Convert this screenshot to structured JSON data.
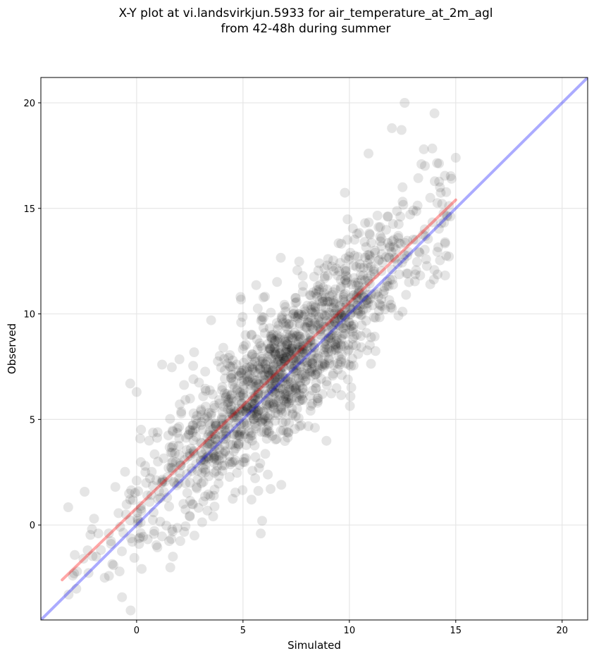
{
  "chart_data": {
    "type": "scatter",
    "title_line1": "X-Y plot at vi.landsvirkjun.5933 for air_temperature_at_2m_agl",
    "title_line2": "from 42-48h during summer",
    "xlabel": "Simulated",
    "ylabel": "Observed",
    "xlim": [
      -4.5,
      21.2
    ],
    "ylim": [
      -4.5,
      21.2
    ],
    "xticks": [
      0,
      5,
      10,
      15,
      20
    ],
    "yticks": [
      0,
      5,
      10,
      15,
      20
    ],
    "grid": true,
    "point_color": "#000000",
    "point_alpha": 0.1,
    "series": [
      {
        "kind": "reference-line",
        "color": "#0000ff",
        "x": [
          -4.5,
          21.2
        ],
        "y": [
          -4.5,
          21.2
        ]
      },
      {
        "kind": "fit-line",
        "color": "#ff0000",
        "x": [
          -3.5,
          15.0
        ],
        "y": [
          -2.6,
          15.4
        ]
      },
      {
        "kind": "points",
        "x": [
          -3.2,
          -3.0,
          -2.8,
          -2.5,
          -2.3,
          -2.1,
          -2.0,
          -1.9,
          -1.8,
          -1.5,
          -1.2,
          -1.0,
          -0.8,
          -0.5,
          -0.3,
          -0.2,
          0.0,
          0.2,
          0.4,
          0.5,
          0.8,
          1.0,
          1.2,
          1.5,
          1.8,
          2.0,
          2.2,
          2.5,
          2.8,
          3.0,
          3.2,
          3.5,
          3.8,
          4.0,
          4.2,
          4.5,
          4.8,
          5.0,
          5.2,
          5.5,
          5.8,
          6.0,
          6.2,
          6.5,
          6.8,
          7.0,
          7.2,
          7.5,
          7.8,
          8.0,
          8.2,
          8.5,
          8.8,
          9.0,
          9.2,
          9.5,
          9.8,
          10.0,
          10.2,
          10.5,
          10.8,
          11.0,
          11.2,
          11.5,
          11.8,
          12.0,
          12.3,
          12.5,
          12.8,
          13.0,
          13.3,
          13.5,
          13.8,
          14.0,
          14.5,
          14.8,
          15.0,
          1.2,
          -0.3,
          0.0,
          5.9,
          5.4,
          3.5,
          12.6,
          13.8,
          12.0,
          10.9,
          8.5,
          2.5,
          6.8
        ],
        "y": [
          -3.3,
          -2.4,
          -2.2,
          -1.6,
          -1.2,
          -0.2,
          0.3,
          -1.5,
          -0.4,
          -2.5,
          -0.9,
          1.8,
          -2.2,
          0.5,
          1.2,
          -0.8,
          2.1,
          0.9,
          2.8,
          1.4,
          0.6,
          3.0,
          2.0,
          2.7,
          3.4,
          2.2,
          1.0,
          4.5,
          2.9,
          3.9,
          3.1,
          5.2,
          2.8,
          4.7,
          6.1,
          3.8,
          5.5,
          4.2,
          6.8,
          5.0,
          7.4,
          4.4,
          6.2,
          8.1,
          5.6,
          7.0,
          9.0,
          6.5,
          8.3,
          7.7,
          10.2,
          7.2,
          9.4,
          8.8,
          10.9,
          8.0,
          11.6,
          9.6,
          12.3,
          10.4,
          9.1,
          11.8,
          13.0,
          10.7,
          14.6,
          12.1,
          13.7,
          16.0,
          11.5,
          14.9,
          12.9,
          17.8,
          15.5,
          19.5,
          13.4,
          16.4,
          17.4,
          7.6,
          6.7,
          6.3,
          0.2,
          1.2,
          9.7,
          20.0,
          11.4,
          18.8,
          17.6,
          6.0,
          0.4,
          1.9
        ]
      }
    ]
  }
}
